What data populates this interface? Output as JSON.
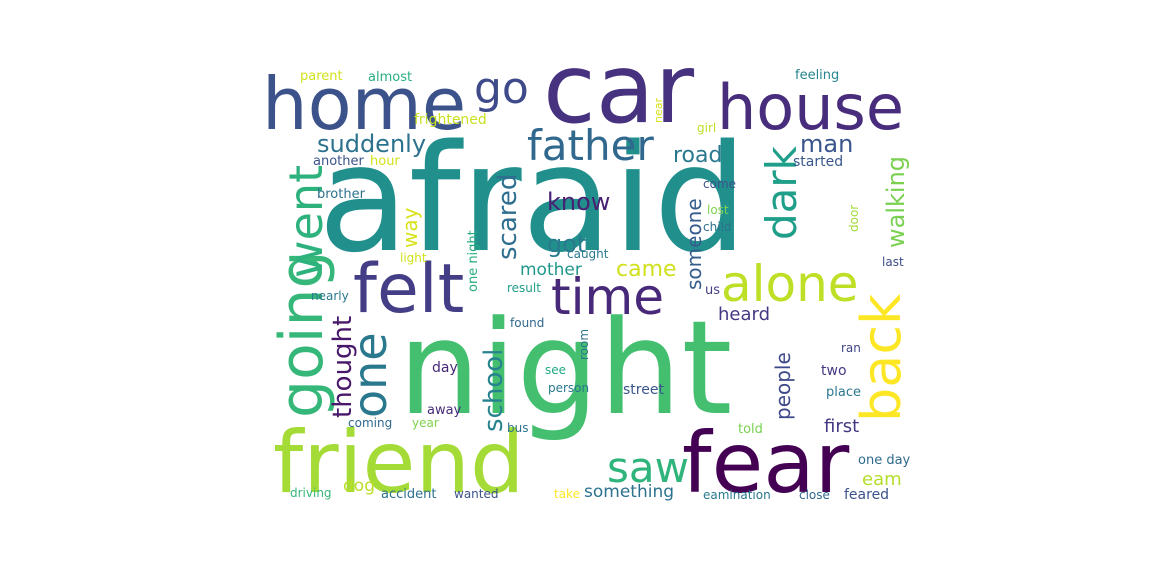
{
  "words": [
    {
      "text": "afraid",
      "color": "#21908d",
      "weight": 1.0
    },
    {
      "text": "night",
      "color": "#44bf70",
      "weight": 0.97
    },
    {
      "text": "car",
      "color": "#46327e",
      "weight": 0.7
    },
    {
      "text": "friend",
      "color": "#a5db36",
      "weight": 0.68
    },
    {
      "text": "fear",
      "color": "#440154",
      "weight": 0.66
    },
    {
      "text": "home",
      "color": "#3b528b",
      "weight": 0.55
    },
    {
      "text": "house",
      "color": "#472d7b",
      "weight": 0.5
    },
    {
      "text": "felt",
      "color": "#433e85",
      "weight": 0.5
    },
    {
      "text": "going",
      "color": "#35b779",
      "weight": 0.46
    },
    {
      "text": "back",
      "color": "#fde725",
      "weight": 0.42
    },
    {
      "text": "time",
      "color": "#482878",
      "weight": 0.38
    },
    {
      "text": "alone",
      "color": "#bddf26",
      "weight": 0.38
    },
    {
      "text": "one",
      "color": "#2a788e",
      "weight": 0.36
    },
    {
      "text": "went",
      "color": "#2db27d",
      "weight": 0.36
    },
    {
      "text": "father",
      "color": "#31688e",
      "weight": 0.34
    },
    {
      "text": "saw",
      "color": "#2fb47c",
      "weight": 0.32
    },
    {
      "text": "go",
      "color": "#3e4a89",
      "weight": 0.32
    },
    {
      "text": "dark",
      "color": "#1f9e89",
      "weight": 0.3
    },
    {
      "text": "suddenly",
      "color": "#2c728e",
      "weight": 0.2
    },
    {
      "text": "thought",
      "color": "#481769",
      "weight": 0.22
    },
    {
      "text": "school",
      "color": "#26828e",
      "weight": 0.22
    },
    {
      "text": "scared",
      "color": "#2e6e8e",
      "weight": 0.2
    },
    {
      "text": "walking",
      "color": "#7ad151",
      "weight": 0.2
    },
    {
      "text": "man",
      "color": "#3a548c",
      "weight": 0.2
    },
    {
      "text": "road",
      "color": "#2a788e",
      "weight": 0.18
    },
    {
      "text": "know",
      "color": "#482173",
      "weight": 0.18
    },
    {
      "text": "got",
      "color": "#287c8e",
      "weight": 0.18
    },
    {
      "text": "way",
      "color": "#d8e219",
      "weight": 0.17
    },
    {
      "text": "someone",
      "color": "#365d8d",
      "weight": 0.17
    },
    {
      "text": "came",
      "color": "#d0e11c",
      "weight": 0.16
    },
    {
      "text": "mother",
      "color": "#1f988b",
      "weight": 0.13
    },
    {
      "text": "people",
      "color": "#3e4989",
      "weight": 0.15
    },
    {
      "text": "heard",
      "color": "#443983",
      "weight": 0.15
    },
    {
      "text": "something",
      "color": "#2c728e",
      "weight": 0.14
    },
    {
      "text": "first",
      "color": "#453781",
      "weight": 0.14
    },
    {
      "text": "eam",
      "color": "#b5de2b",
      "weight": 0.14
    },
    {
      "text": "dog",
      "color": "#bade28",
      "weight": 0.13
    },
    {
      "text": "started",
      "color": "#38588c",
      "weight": 0.1
    },
    {
      "text": "frightened",
      "color": "#cae11f",
      "weight": 0.1
    },
    {
      "text": "parent",
      "color": "#d2e21b",
      "weight": 0.09
    },
    {
      "text": "almost",
      "color": "#29af7f",
      "weight": 0.09
    },
    {
      "text": "feeling",
      "color": "#25848e",
      "weight": 0.09
    },
    {
      "text": "another",
      "color": "#3b528b",
      "weight": 0.09
    },
    {
      "text": "hour",
      "color": "#d2e21b",
      "weight": 0.09
    },
    {
      "text": "brother",
      "color": "#2d708e",
      "weight": 0.09
    },
    {
      "text": "one night",
      "color": "#25ab82",
      "weight": 0.09
    },
    {
      "text": "caught",
      "color": "#2a788e",
      "weight": 0.08
    },
    {
      "text": "light",
      "color": "#d2e21b",
      "weight": 0.08
    },
    {
      "text": "come",
      "color": "#3b528b",
      "weight": 0.08
    },
    {
      "text": "lost",
      "color": "#7fd34e",
      "weight": 0.08
    },
    {
      "text": "child",
      "color": "#2d708e",
      "weight": 0.08
    },
    {
      "text": "door",
      "color": "#a0da39",
      "weight": 0.08
    },
    {
      "text": "last",
      "color": "#3e4c8a",
      "weight": 0.08
    },
    {
      "text": "us",
      "color": "#433e85",
      "weight": 0.08
    },
    {
      "text": "result",
      "color": "#1fa088",
      "weight": 0.08
    },
    {
      "text": "nearly",
      "color": "#2a788e",
      "weight": 0.08
    },
    {
      "text": "found",
      "color": "#31688e",
      "weight": 0.08
    },
    {
      "text": "room",
      "color": "#2c728e",
      "weight": 0.08
    },
    {
      "text": "ran",
      "color": "#404688",
      "weight": 0.08
    },
    {
      "text": "day",
      "color": "#482878",
      "weight": 0.09
    },
    {
      "text": "see",
      "color": "#22a884",
      "weight": 0.08
    },
    {
      "text": "two",
      "color": "#443a83",
      "weight": 0.09
    },
    {
      "text": "person",
      "color": "#2a788e",
      "weight": 0.08
    },
    {
      "text": "street",
      "color": "#39568c",
      "weight": 0.09
    },
    {
      "text": "place",
      "color": "#2a788e",
      "weight": 0.08
    },
    {
      "text": "away",
      "color": "#472c7a",
      "weight": 0.08
    },
    {
      "text": "coming",
      "color": "#31688e",
      "weight": 0.08
    },
    {
      "text": "year",
      "color": "#7fd34e",
      "weight": 0.07
    },
    {
      "text": "bus",
      "color": "#2c728e",
      "weight": 0.07
    },
    {
      "text": "told",
      "color": "#7ad151",
      "weight": 0.08
    },
    {
      "text": "one day",
      "color": "#2f6b8e",
      "weight": 0.08
    },
    {
      "text": "driving",
      "color": "#35b779",
      "weight": 0.07
    },
    {
      "text": "accident",
      "color": "#2c728e",
      "weight": 0.08
    },
    {
      "text": "wanted",
      "color": "#3b528b",
      "weight": 0.07
    },
    {
      "text": "take",
      "color": "#fde725",
      "weight": 0.07
    },
    {
      "text": "eamination",
      "color": "#2a788e",
      "weight": 0.07
    },
    {
      "text": "close",
      "color": "#31688e",
      "weight": 0.07
    },
    {
      "text": "feared",
      "color": "#3b528b",
      "weight": 0.08
    },
    {
      "text": "near",
      "color": "#d8e219",
      "weight": 0.06
    },
    {
      "text": "girl",
      "color": "#bddf26",
      "weight": 0.06
    }
  ]
}
